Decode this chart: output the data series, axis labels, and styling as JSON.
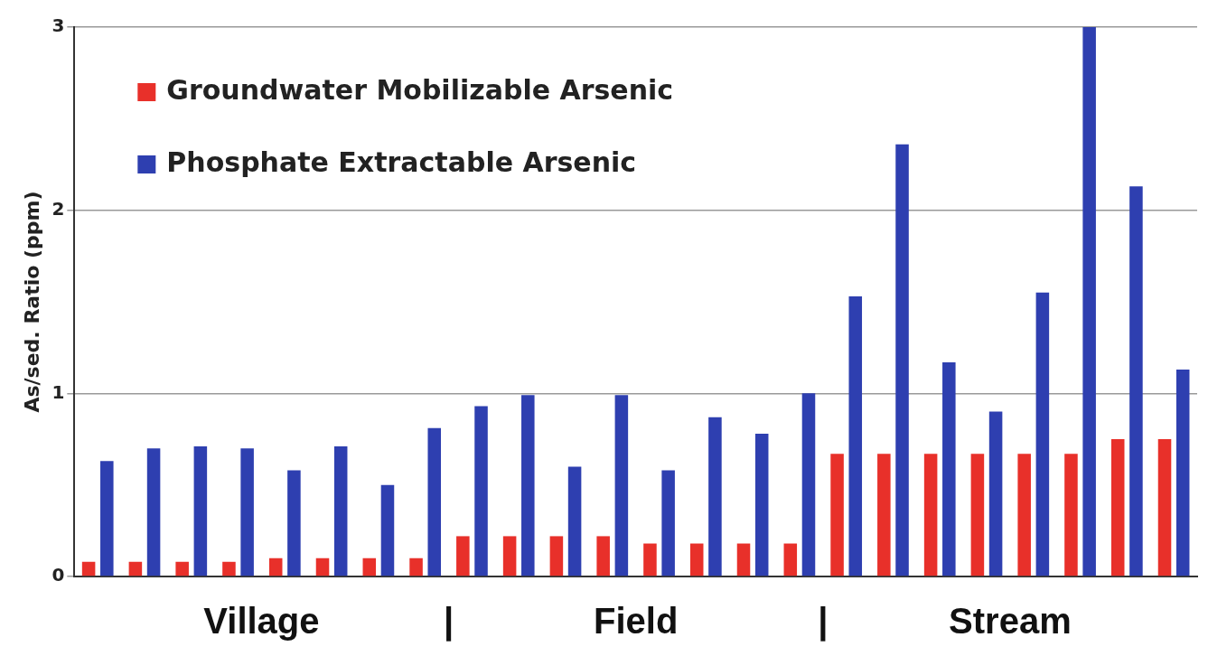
{
  "chart_data": {
    "type": "bar",
    "ylabel": "As/sed. Ratio (ppm)",
    "categories": [
      null,
      null,
      null,
      null,
      null,
      null,
      null,
      null,
      null,
      null,
      null,
      null,
      null,
      null,
      null,
      null,
      null,
      null,
      null,
      null,
      null,
      null,
      null,
      null
    ],
    "series": [
      {
        "name": "Groundwater Mobilizable Arsenic",
        "color": "#e8302a",
        "values": [
          0.08,
          0.08,
          0.08,
          0.08,
          0.1,
          0.1,
          0.1,
          0.1,
          0.22,
          0.22,
          0.22,
          0.22,
          0.18,
          0.18,
          0.18,
          0.18,
          0.67,
          0.67,
          0.67,
          0.67,
          0.67,
          0.67,
          0.75,
          0.75
        ]
      },
      {
        "name": "Phosphate Extractable Arsenic",
        "color": "#2e3fb0",
        "values": [
          0.63,
          0.7,
          0.71,
          0.7,
          0.58,
          0.71,
          0.5,
          0.81,
          0.93,
          0.99,
          0.6,
          0.99,
          0.58,
          0.87,
          0.78,
          1.0,
          1.53,
          2.36,
          1.17,
          0.9,
          1.55,
          3.0,
          2.13,
          1.13
        ]
      }
    ],
    "ylim": [
      0,
      3
    ],
    "yticks": [
      0,
      1,
      2,
      3
    ],
    "grid": "y",
    "legend": "top left",
    "annotations": [
      "Village",
      "|",
      "Field",
      "|",
      "Stream"
    ]
  }
}
